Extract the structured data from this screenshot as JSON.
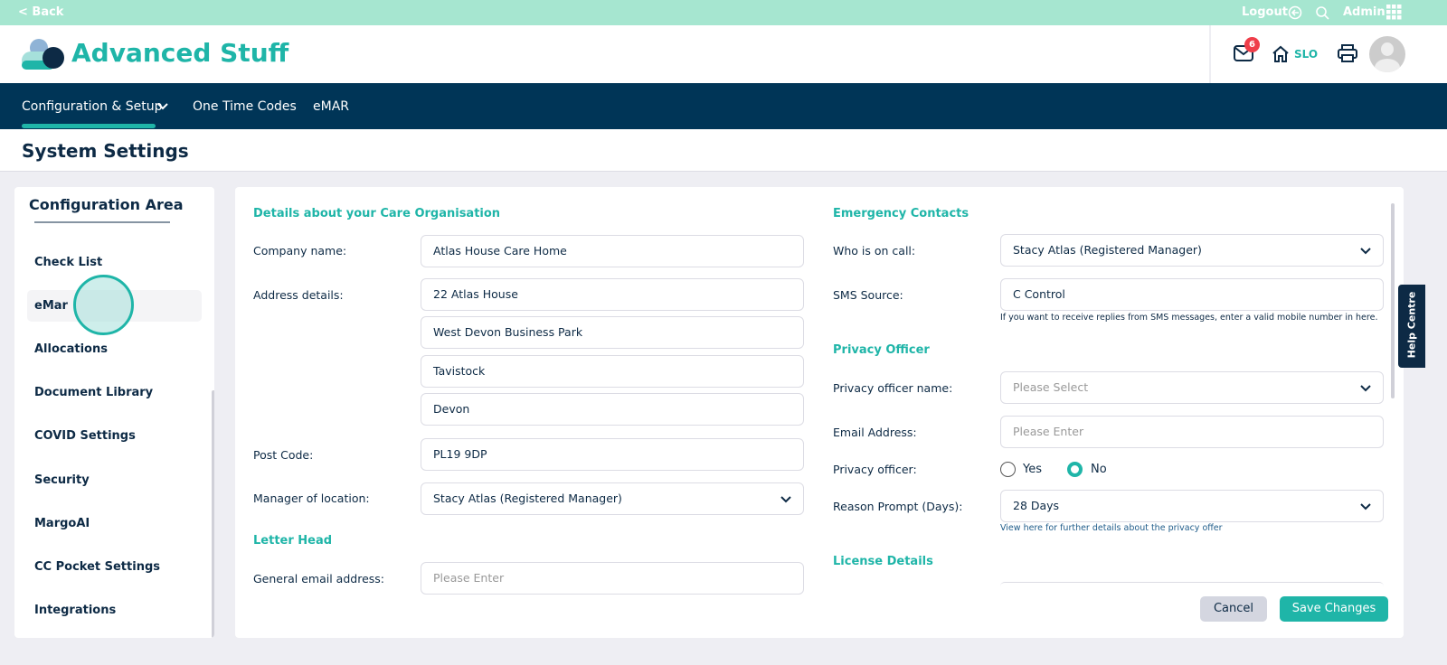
{
  "topbar": {
    "back": "< Back",
    "logout": "Logout",
    "admin": "Admin"
  },
  "header": {
    "brand": "Advanced Stuff",
    "mail_count": "6",
    "home_label": "SLO"
  },
  "nav": {
    "items": [
      "Configuration & Setup",
      "One Time Codes",
      "eMAR"
    ]
  },
  "page_title": "System Settings",
  "sidebar": {
    "title": "Configuration Area",
    "items": [
      "Check List",
      "eMar",
      "Allocations",
      "Document Library",
      "COVID Settings",
      "Security",
      "MargoAI",
      "CC Pocket Settings",
      "Integrations"
    ],
    "selected": "eMar"
  },
  "left": {
    "section1": "Details about your Care Organisation",
    "company_label": "Company name:",
    "company_value": "Atlas House Care Home",
    "address_label": "Address details:",
    "address": [
      "22 Atlas House",
      "West Devon Business Park",
      "Tavistock",
      "Devon"
    ],
    "postcode_label": "Post Code:",
    "postcode_value": "PL19 9DP",
    "manager_label": "Manager of location:",
    "manager_value": "Stacy Atlas (Registered Manager)",
    "section2": "Letter Head",
    "email_label": "General email address:",
    "email_placeholder": "Please Enter"
  },
  "right": {
    "section1": "Emergency Contacts",
    "oncall_label": "Who is on call:",
    "oncall_value": "Stacy Atlas (Registered Manager)",
    "sms_label": "SMS Source:",
    "sms_value": "C Control",
    "sms_note": "If you want to receive replies from SMS messages, enter a valid mobile number in here.",
    "section2": "Privacy Officer",
    "po_name_label": "Privacy officer name:",
    "po_name_placeholder": "Please Select",
    "po_email_label": "Email Address:",
    "po_email_placeholder": "Please Enter",
    "po_label": "Privacy officer:",
    "yes": "Yes",
    "no": "No",
    "po_selected": "No",
    "reason_label": "Reason Prompt (Days):",
    "reason_value": "28 Days",
    "reason_note": "View here for further details about the privacy offer",
    "section3": "License Details"
  },
  "buttons": {
    "cancel": "Cancel",
    "save": "Save Changes"
  },
  "help": "Help Centre",
  "colors": {
    "accent": "#1fb5a8",
    "nav": "#003557",
    "topbar": "#a6e6d0"
  }
}
